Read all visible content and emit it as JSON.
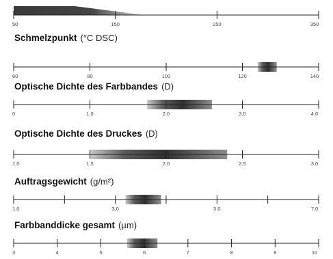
{
  "chart_data": [
    {
      "type": "range",
      "title": "",
      "unit": "",
      "ticks": [
        "50",
        "150",
        "250",
        "350"
      ],
      "tick_values": [
        50,
        150,
        250,
        350
      ],
      "range": [
        50,
        178
      ],
      "xlim": [
        50,
        350
      ],
      "shape": "taper"
    },
    {
      "type": "range",
      "title": "Schmelzpunkt",
      "unit": "(°C DSC)",
      "ticks": [
        "60",
        "80",
        "100",
        "120",
        "140"
      ],
      "tick_values": [
        60,
        80,
        100,
        120,
        140
      ],
      "range": [
        124,
        129
      ],
      "xlim": [
        60,
        140
      ]
    },
    {
      "type": "range",
      "title": "Optische Dichte des Farbbandes",
      "unit": "(D)",
      "ticks": [
        "0",
        "1.0",
        "2.0",
        "3.0",
        "4.0"
      ],
      "tick_values": [
        0,
        1,
        2,
        3,
        4
      ],
      "range": [
        1.75,
        2.6
      ],
      "xlim": [
        0,
        4
      ]
    },
    {
      "type": "range",
      "title": "Optische Dichte des Druckes",
      "unit": "(D)",
      "ticks": [
        "1.0",
        "1.5",
        "2.0",
        "2.5",
        "3.0"
      ],
      "tick_values": [
        1,
        1.5,
        2,
        2.5,
        3
      ],
      "range": [
        1.5,
        2.4
      ],
      "xlim": [
        1,
        3
      ]
    },
    {
      "type": "range",
      "title": "Auftragsgewicht",
      "unit": "(g/m²)",
      "ticks": [
        "1,0",
        "",
        "3,0",
        "",
        "5,0",
        "",
        "7,0"
      ],
      "tick_values": [
        1,
        2,
        3,
        4,
        5,
        6,
        7
      ],
      "range": [
        3.2,
        3.9
      ],
      "xlim": [
        1,
        7
      ]
    },
    {
      "type": "range",
      "title": "Farbbanddicke gesamt",
      "unit": "(µm)",
      "ticks": [
        "3",
        "4",
        "5",
        "6",
        "7",
        "8",
        "9",
        "10"
      ],
      "tick_values": [
        3,
        4,
        5,
        6,
        7,
        8,
        9,
        10
      ],
      "range": [
        5.6,
        6.3
      ],
      "xlim": [
        3,
        10
      ]
    }
  ]
}
